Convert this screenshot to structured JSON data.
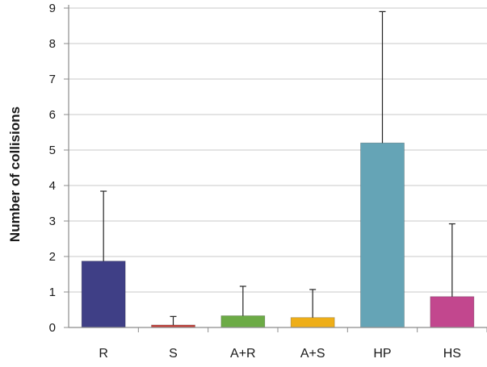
{
  "chart_data": {
    "type": "bar",
    "title": "",
    "xlabel": "",
    "ylabel": "Number of collisions",
    "categories": [
      "R",
      "S",
      "A+R",
      "A+S",
      "HP",
      "HS"
    ],
    "values": [
      1.87,
      0.07,
      0.33,
      0.28,
      5.2,
      0.87
    ],
    "error_upper": [
      3.84,
      0.31,
      1.16,
      1.07,
      8.9,
      2.92
    ],
    "colors": [
      "#3f3f86",
      "#c2413b",
      "#6cab46",
      "#eeae18",
      "#65a4b6",
      "#c2478e"
    ],
    "ylim": [
      0,
      9
    ],
    "yticks": [
      "0",
      "1",
      "2",
      "3",
      "4",
      "5",
      "6",
      "7",
      "8",
      "9"
    ],
    "grid": true,
    "legend": "none"
  }
}
